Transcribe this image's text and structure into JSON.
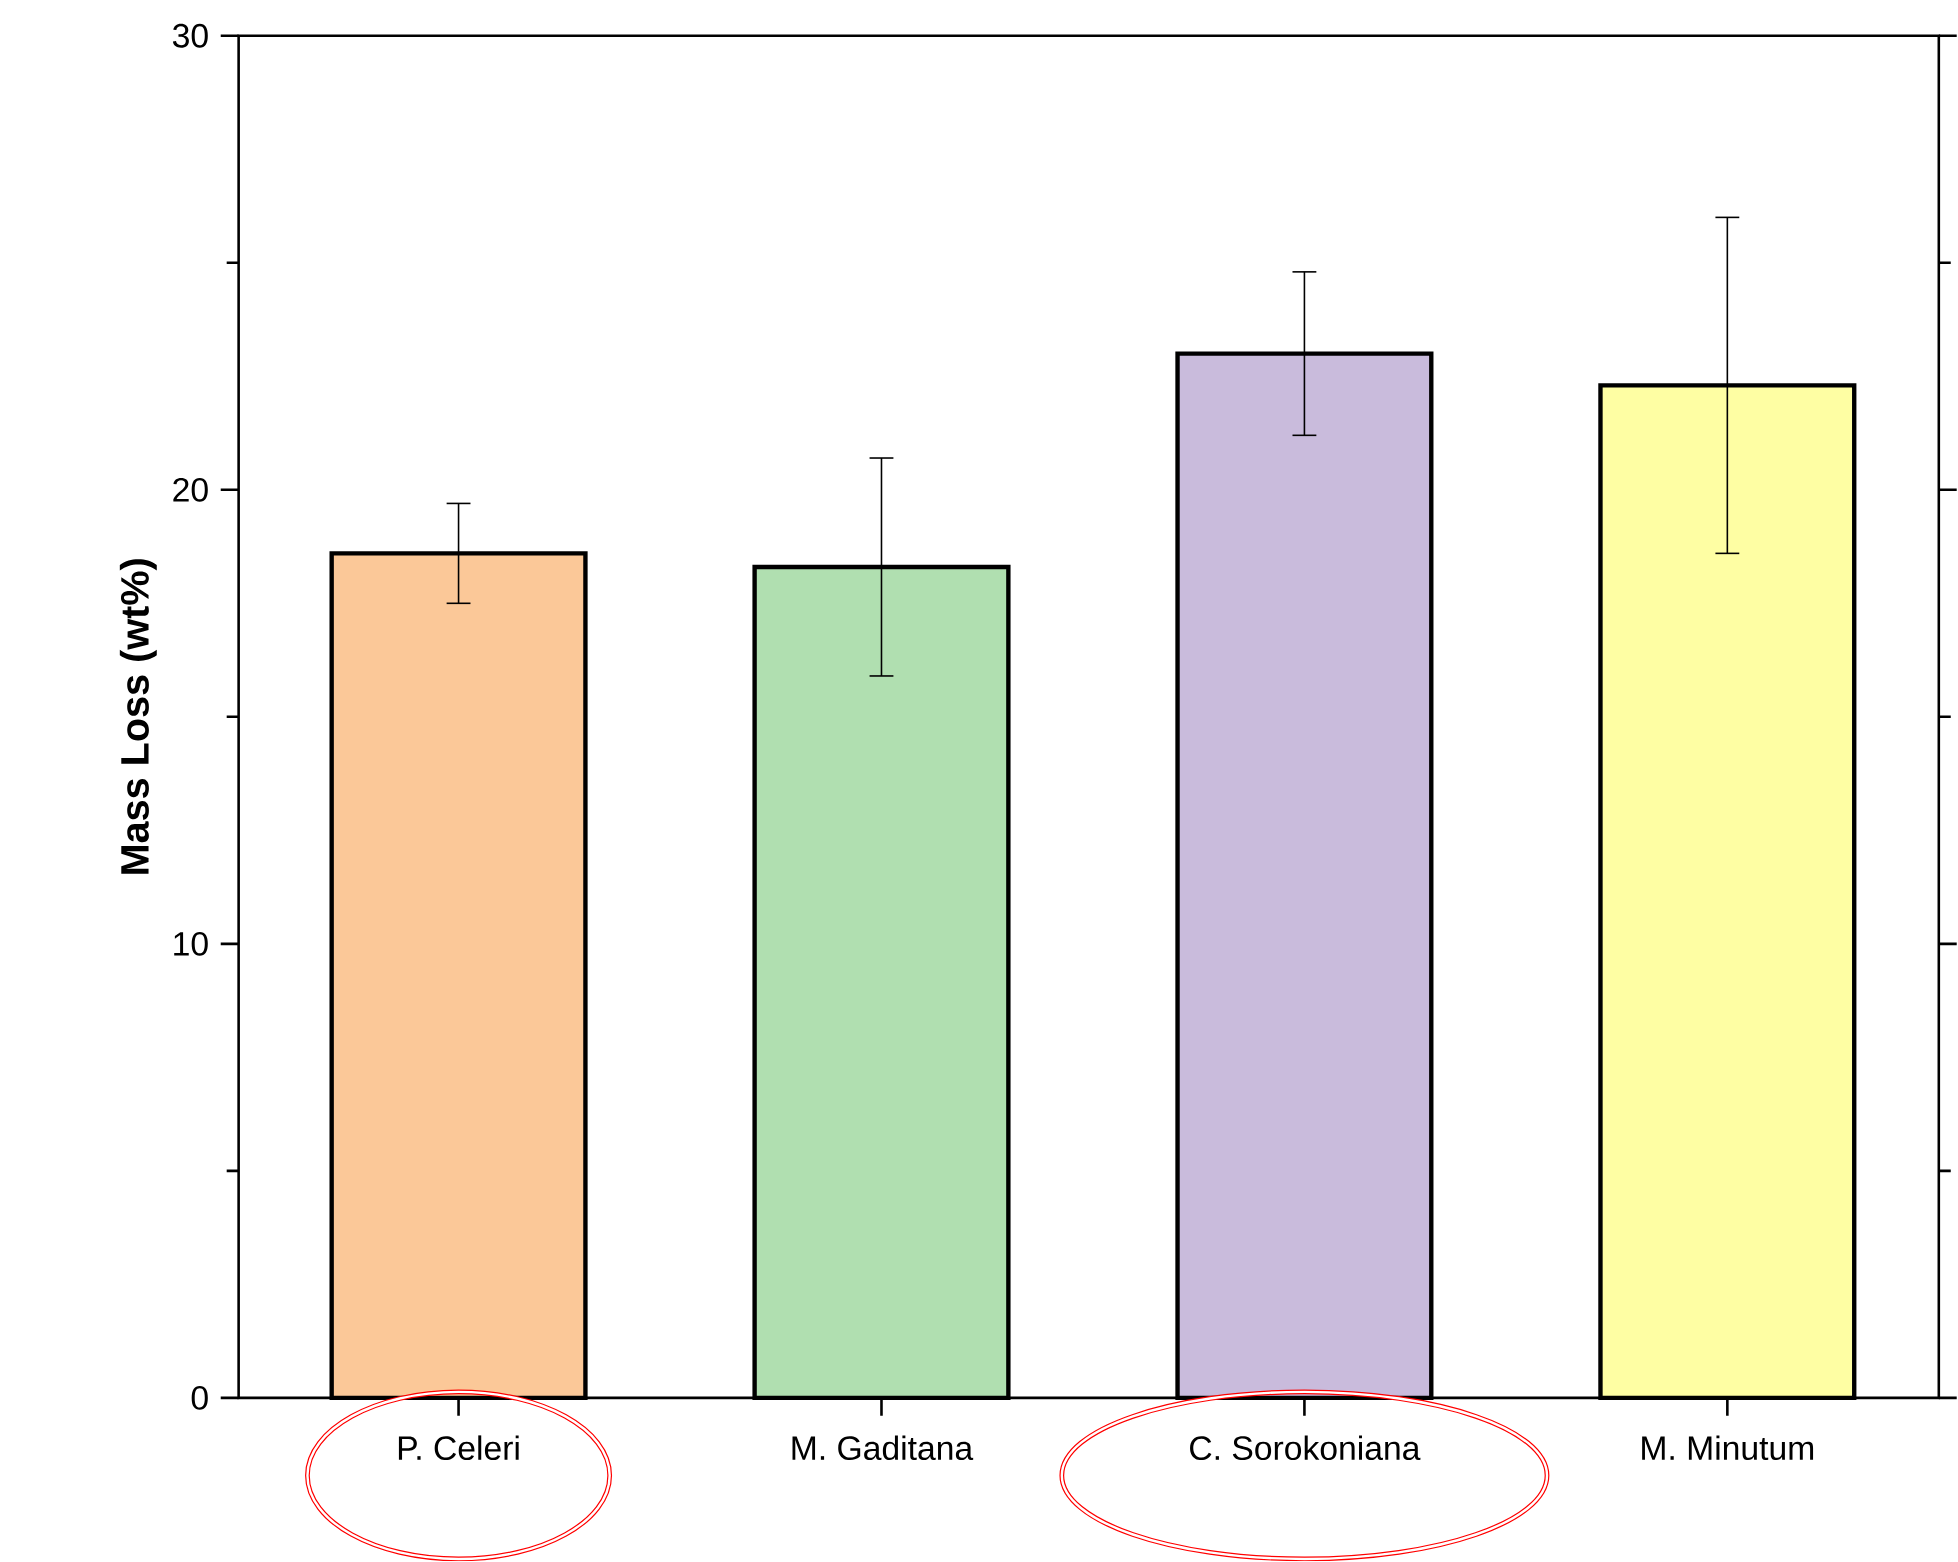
{
  "chart_data": {
    "type": "bar",
    "ylabel": "Mass Loss (wt%)",
    "categories": [
      "P. Celeri",
      "M. Gaditana",
      "C. Sorokoniana",
      "M. Minutum"
    ],
    "values": [
      18.6,
      18.3,
      23.0,
      22.3
    ],
    "errors": [
      1.1,
      2.4,
      1.8,
      3.7
    ],
    "colors": [
      "#fbc898",
      "#b0dfb0",
      "#c9bbdc",
      "#fefea3"
    ],
    "ylim": [
      0,
      30
    ],
    "yticks": [
      0,
      {
        "value": 5,
        "label": null
      },
      10,
      {
        "value": 15,
        "label": null
      },
      20,
      {
        "value": 25,
        "label": null
      },
      30
    ],
    "grid": false
  }
}
